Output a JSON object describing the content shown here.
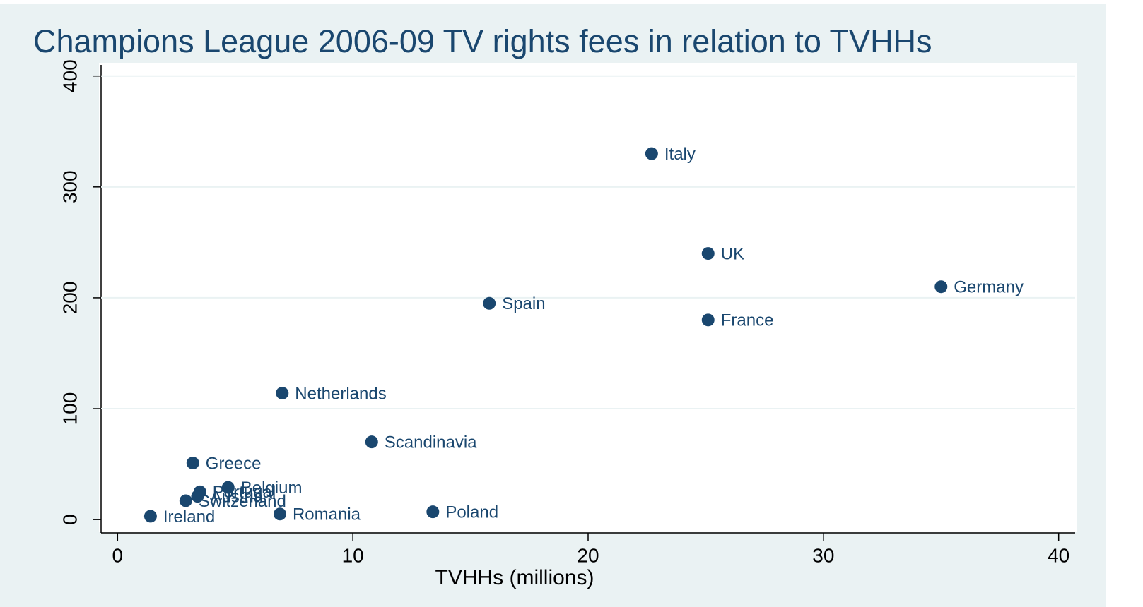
{
  "chart_data": {
    "type": "scatter",
    "title": "Champions League 2006-09 TV rights  fees in relation to TVHHs",
    "x_label": "TVHHs (millions)",
    "color": "#1a476f",
    "series": [
      {
        "name": null,
        "color": "#1a476f",
        "labels": [
          "Italy",
          "UK",
          "Germany",
          "Spain",
          "France",
          "Netherlands",
          "Scandinavia",
          "Greece",
          "Belgium",
          "Portugal",
          "Austria",
          "Switzerland",
          "Ireland",
          "Romania",
          "Poland"
        ],
        "x": [
          22.7,
          25.1,
          35.0,
          15.8,
          25.1,
          7.0,
          10.8,
          3.2,
          4.7,
          3.5,
          3.4,
          2.9,
          1.4,
          6.9,
          13.4
        ],
        "values": [
          330,
          240,
          210,
          195,
          180,
          114,
          70,
          51,
          29,
          25,
          21,
          17,
          3,
          5,
          7
        ]
      }
    ],
    "xlim": [
      -0.7,
      40.7
    ],
    "xticks": [
      0,
      10,
      20,
      30,
      40
    ],
    "ylim": [
      -12,
      410
    ],
    "yticks": [
      0,
      100,
      200,
      300,
      400
    ],
    "grid": true
  }
}
